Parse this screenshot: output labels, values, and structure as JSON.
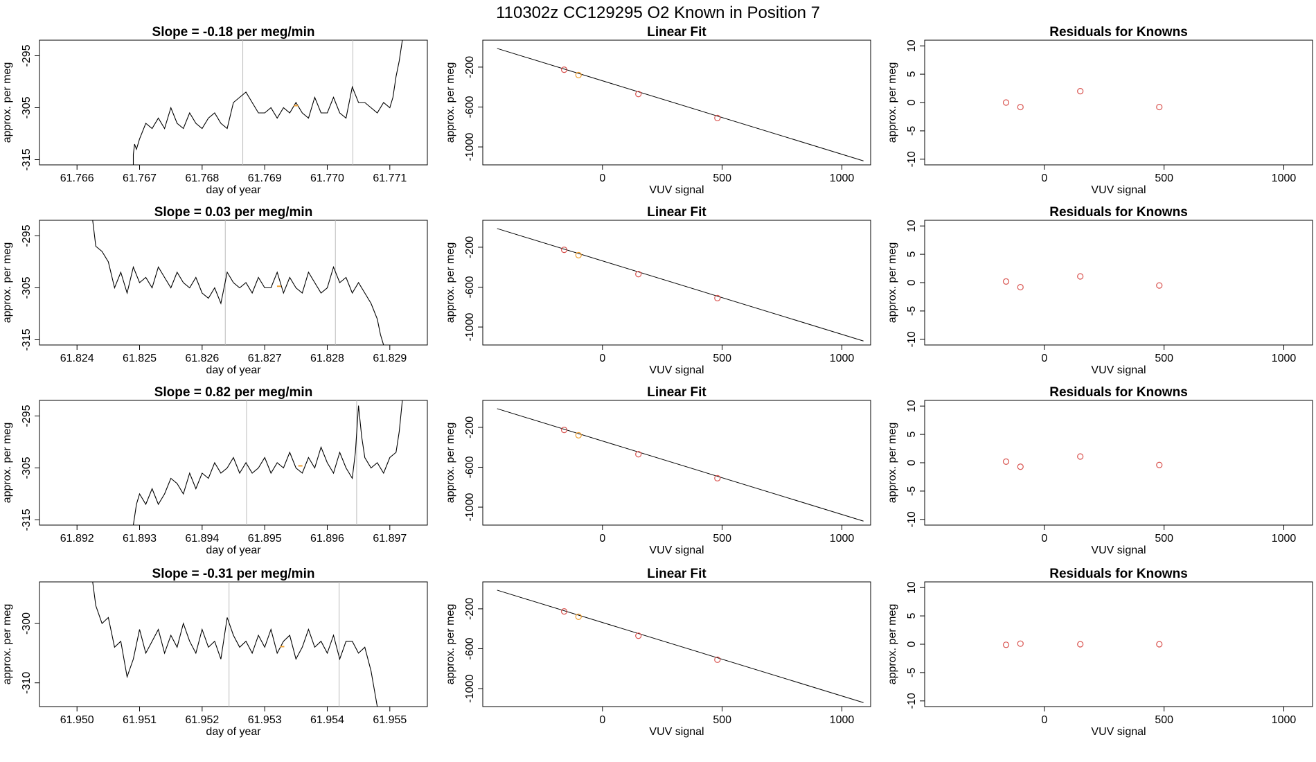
{
  "figure": {
    "title": "110302z      CC129295    O2 Known in Position  7"
  },
  "colors": {
    "line": "#000000",
    "point_red": "#d9534f",
    "point_orange": "#f0a030",
    "marker_line": "#bbbbbb",
    "box": "#000000"
  },
  "chart_data": [
    {
      "type": "line",
      "row": 0,
      "kind": "timeseries",
      "title": "Slope =  -0.18  per meg/min",
      "xlabel": "day of year",
      "ylabel": "approx. per meg",
      "xlim": [
        61.7654,
        61.7716
      ],
      "ylim": [
        -316,
        -292
      ],
      "xticks": [
        61.766,
        61.767,
        61.768,
        61.769,
        61.77,
        61.771
      ],
      "xtick_labels": [
        "61.766",
        "61.767",
        "61.768",
        "61.769",
        "61.770",
        "61.771"
      ],
      "yticks": [
        -315,
        -305,
        -295
      ],
      "ytick_labels": [
        "-315",
        "-305",
        "-295"
      ],
      "vlines": [
        61.76865,
        61.77041
      ],
      "marker": {
        "x": 61.7695,
        "y": -304.6
      },
      "series": [
        {
          "x": [
            61.7655,
            61.7668,
            61.7669,
            61.7669,
            61.76692,
            61.76695,
            61.767,
            61.7671,
            61.7672,
            61.7673,
            61.7674,
            61.7675,
            61.7676,
            61.7677,
            61.7678,
            61.7679,
            61.768,
            61.7681,
            61.7682,
            61.7683,
            61.7684,
            61.7685,
            61.7686,
            61.7687,
            61.7688,
            61.7689,
            61.769,
            61.7691,
            61.7692,
            61.7693,
            61.7694,
            61.7695,
            61.7696,
            61.7697,
            61.7698,
            61.7699,
            61.77,
            61.7701,
            61.7702,
            61.7703,
            61.7704,
            61.7705,
            61.7706,
            61.7707,
            61.7708,
            61.7709,
            61.771,
            61.77105,
            61.7711,
            61.77115,
            61.7712
          ],
          "y": [
            -316,
            -316,
            -316,
            -314,
            -312,
            -313,
            -311,
            -308,
            -309,
            -307,
            -309,
            -305,
            -308,
            -309,
            -306,
            -308,
            -309,
            -307,
            -306,
            -308,
            -309,
            -304,
            -303,
            -302,
            -304,
            -306,
            -306,
            -305,
            -307,
            -305,
            -306,
            -304,
            -306,
            -307,
            -303,
            -306,
            -306,
            -303,
            -306,
            -307,
            -301,
            -304,
            -304,
            -305,
            -306,
            -304,
            -305,
            -303,
            -299,
            -296,
            -292
          ]
        }
      ]
    },
    {
      "type": "line",
      "row": 0,
      "kind": "linearfit",
      "title": "Linear Fit",
      "xlabel": "VUV signal",
      "ylabel": "approx. per meg",
      "xlim": [
        -500,
        1120
      ],
      "ylim": [
        -1180,
        70
      ],
      "xticks": [
        0,
        500,
        1000
      ],
      "xtick_labels": [
        "0",
        "500",
        "1000"
      ],
      "yticks": [
        -200,
        -600,
        -1000
      ],
      "ytick_labels": [
        "-200",
        "-600",
        "-1000"
      ],
      "fit_line": {
        "x": [
          -440,
          1090
        ],
        "y": [
          -13,
          -1140
        ]
      },
      "points": [
        {
          "x": -160,
          "y": -226,
          "color": "red"
        },
        {
          "x": -100,
          "y": -280,
          "color": "orange"
        },
        {
          "x": 150,
          "y": -470,
          "color": "red"
        },
        {
          "x": 480,
          "y": -710,
          "color": "red"
        }
      ]
    },
    {
      "type": "scatter",
      "row": 0,
      "kind": "residuals",
      "title": "Residuals for Knowns",
      "xlabel": "VUV signal",
      "ylabel": "approx. per meg",
      "xlim": [
        -500,
        1120
      ],
      "ylim": [
        -11,
        11
      ],
      "xticks": [
        0,
        500,
        1000
      ],
      "xtick_labels": [
        "0",
        "500",
        "1000"
      ],
      "yticks": [
        -10,
        -5,
        0,
        5,
        10
      ],
      "ytick_labels": [
        "-10",
        "-5",
        "0",
        "5",
        "10"
      ],
      "points": [
        {
          "x": -160,
          "y": 0.0
        },
        {
          "x": -100,
          "y": -0.8
        },
        {
          "x": 150,
          "y": 2.0
        },
        {
          "x": 480,
          "y": -0.8
        }
      ]
    },
    {
      "type": "line",
      "row": 1,
      "kind": "timeseries",
      "title": "Slope =  0.03  per meg/min",
      "xlabel": "day of year",
      "ylabel": "approx. per meg",
      "xlim": [
        61.8234,
        61.8296
      ],
      "ylim": [
        -316,
        -292
      ],
      "xticks": [
        61.824,
        61.825,
        61.826,
        61.827,
        61.828,
        61.829
      ],
      "xtick_labels": [
        "61.824",
        "61.825",
        "61.826",
        "61.827",
        "61.828",
        "61.829"
      ],
      "yticks": [
        -315,
        -305,
        -295
      ],
      "ytick_labels": [
        "-315",
        "-305",
        "-295"
      ],
      "vlines": [
        61.82637,
        61.82813
      ],
      "marker": {
        "x": 61.82723,
        "y": -304.7
      },
      "series": [
        {
          "x": [
            61.82425,
            61.8243,
            61.8244,
            61.8245,
            61.8246,
            61.8247,
            61.8248,
            61.8249,
            61.825,
            61.8251,
            61.8252,
            61.8253,
            61.8254,
            61.8255,
            61.8256,
            61.8257,
            61.8258,
            61.8259,
            61.826,
            61.8261,
            61.8262,
            61.8263,
            61.8264,
            61.8265,
            61.8266,
            61.8267,
            61.8268,
            61.8269,
            61.827,
            61.8271,
            61.8272,
            61.8273,
            61.8274,
            61.8275,
            61.8276,
            61.8277,
            61.8278,
            61.8279,
            61.828,
            61.8281,
            61.8282,
            61.8283,
            61.8284,
            61.8285,
            61.8286,
            61.8287,
            61.8288,
            61.82885,
            61.8289
          ],
          "y": [
            -292,
            -297,
            -298,
            -300,
            -305,
            -302,
            -306,
            -301,
            -304,
            -303,
            -305,
            -301,
            -303,
            -305,
            -302,
            -304,
            -305,
            -303,
            -306,
            -307,
            -305,
            -308,
            -302,
            -304,
            -305,
            -304,
            -306,
            -303,
            -305,
            -305,
            -302,
            -306,
            -303,
            -305,
            -306,
            -302,
            -304,
            -306,
            -305,
            -301,
            -304,
            -303,
            -306,
            -304,
            -306,
            -308,
            -311,
            -314,
            -316
          ]
        }
      ]
    },
    {
      "type": "line",
      "row": 1,
      "kind": "linearfit",
      "title": "Linear Fit",
      "xlabel": "VUV signal",
      "ylabel": "approx. per meg",
      "xlim": [
        -500,
        1120
      ],
      "ylim": [
        -1180,
        70
      ],
      "xticks": [
        0,
        500,
        1000
      ],
      "xtick_labels": [
        "0",
        "500",
        "1000"
      ],
      "yticks": [
        -200,
        -600,
        -1000
      ],
      "ytick_labels": [
        "-200",
        "-600",
        "-1000"
      ],
      "fit_line": {
        "x": [
          -440,
          1090
        ],
        "y": [
          -13,
          -1140
        ]
      },
      "points": [
        {
          "x": -160,
          "y": -226,
          "color": "red"
        },
        {
          "x": -100,
          "y": -280,
          "color": "orange"
        },
        {
          "x": 150,
          "y": -470,
          "color": "red"
        },
        {
          "x": 480,
          "y": -710,
          "color": "red"
        }
      ]
    },
    {
      "type": "scatter",
      "row": 1,
      "kind": "residuals",
      "title": "Residuals for Knowns",
      "xlabel": "VUV signal",
      "ylabel": "approx. per meg",
      "xlim": [
        -500,
        1120
      ],
      "ylim": [
        -11,
        11
      ],
      "xticks": [
        0,
        500,
        1000
      ],
      "xtick_labels": [
        "0",
        "500",
        "1000"
      ],
      "yticks": [
        -10,
        -5,
        0,
        5,
        10
      ],
      "ytick_labels": [
        "-10",
        "-5",
        "0",
        "5",
        "10"
      ],
      "points": [
        {
          "x": -160,
          "y": 0.2
        },
        {
          "x": -100,
          "y": -0.8
        },
        {
          "x": 150,
          "y": 1.1
        },
        {
          "x": 480,
          "y": -0.5
        }
      ]
    },
    {
      "type": "line",
      "row": 2,
      "kind": "timeseries",
      "title": "Slope =  0.82  per meg/min",
      "xlabel": "day of year",
      "ylabel": "approx. per meg",
      "xlim": [
        61.8914,
        61.8976
      ],
      "ylim": [
        -316,
        -292
      ],
      "xticks": [
        61.892,
        61.893,
        61.894,
        61.895,
        61.896,
        61.897
      ],
      "xtick_labels": [
        "61.892",
        "61.893",
        "61.894",
        "61.895",
        "61.896",
        "61.897"
      ],
      "yticks": [
        -315,
        -305,
        -295
      ],
      "ytick_labels": [
        "-315",
        "-305",
        "-295"
      ],
      "vlines": [
        61.89471,
        61.89647
      ],
      "marker": {
        "x": 61.89557,
        "y": -304.6
      },
      "series": [
        {
          "x": [
            61.8915,
            61.8928,
            61.8929,
            61.89295,
            61.893,
            61.8931,
            61.8932,
            61.8933,
            61.8934,
            61.8935,
            61.8936,
            61.8937,
            61.8938,
            61.8939,
            61.894,
            61.8941,
            61.8942,
            61.8943,
            61.8944,
            61.8945,
            61.8946,
            61.8947,
            61.8948,
            61.8949,
            61.895,
            61.8951,
            61.8952,
            61.8953,
            61.8954,
            61.8955,
            61.8956,
            61.8957,
            61.8958,
            61.8959,
            61.896,
            61.8961,
            61.8962,
            61.8963,
            61.8964,
            61.89645,
            61.8965,
            61.89655,
            61.8966,
            61.8967,
            61.8968,
            61.8969,
            61.897,
            61.8971,
            61.89715,
            61.8972
          ],
          "y": [
            -316,
            -316,
            -316,
            -312,
            -310,
            -312,
            -309,
            -312,
            -310,
            -307,
            -308,
            -310,
            -306,
            -309,
            -306,
            -307,
            -304,
            -306,
            -305,
            -303,
            -306,
            -304,
            -306,
            -305,
            -303,
            -306,
            -304,
            -305,
            -302,
            -305,
            -306,
            -303,
            -305,
            -301,
            -304,
            -306,
            -302,
            -305,
            -307,
            -302,
            -293,
            -299,
            -303,
            -305,
            -304,
            -306,
            -303,
            -302,
            -298,
            -292
          ]
        }
      ]
    },
    {
      "type": "line",
      "row": 2,
      "kind": "linearfit",
      "title": "Linear Fit",
      "xlabel": "VUV signal",
      "ylabel": "approx. per meg",
      "xlim": [
        -500,
        1120
      ],
      "ylim": [
        -1180,
        70
      ],
      "xticks": [
        0,
        500,
        1000
      ],
      "xtick_labels": [
        "0",
        "500",
        "1000"
      ],
      "yticks": [
        -200,
        -600,
        -1000
      ],
      "ytick_labels": [
        "-200",
        "-600",
        "-1000"
      ],
      "fit_line": {
        "x": [
          -440,
          1090
        ],
        "y": [
          -13,
          -1140
        ]
      },
      "points": [
        {
          "x": -160,
          "y": -226,
          "color": "red"
        },
        {
          "x": -100,
          "y": -280,
          "color": "orange"
        },
        {
          "x": 150,
          "y": -470,
          "color": "red"
        },
        {
          "x": 480,
          "y": -710,
          "color": "red"
        }
      ]
    },
    {
      "type": "scatter",
      "row": 2,
      "kind": "residuals",
      "title": "Residuals for Knowns",
      "xlabel": "VUV signal",
      "ylabel": "approx. per meg",
      "xlim": [
        -500,
        1120
      ],
      "ylim": [
        -11,
        11
      ],
      "xticks": [
        0,
        500,
        1000
      ],
      "xtick_labels": [
        "0",
        "500",
        "1000"
      ],
      "yticks": [
        -10,
        -5,
        0,
        5,
        10
      ],
      "ytick_labels": [
        "-10",
        "-5",
        "0",
        "5",
        "10"
      ],
      "points": [
        {
          "x": -160,
          "y": 0.2
        },
        {
          "x": -100,
          "y": -0.7
        },
        {
          "x": 150,
          "y": 1.1
        },
        {
          "x": 480,
          "y": -0.4
        }
      ]
    },
    {
      "type": "line",
      "row": 3,
      "kind": "timeseries",
      "title": "Slope =  -0.31  per meg/min",
      "xlabel": "day of year",
      "ylabel": "approx. per meg",
      "xlim": [
        61.9494,
        61.9556
      ],
      "ylim": [
        -314,
        -293
      ],
      "xticks": [
        61.95,
        61.951,
        61.952,
        61.953,
        61.954,
        61.955
      ],
      "xtick_labels": [
        "61.950",
        "61.951",
        "61.952",
        "61.953",
        "61.954",
        "61.955"
      ],
      "yticks": [
        -310,
        -300
      ],
      "ytick_labels": [
        "-310",
        "-300"
      ],
      "vlines": [
        61.95243,
        61.95419
      ],
      "marker": {
        "x": 61.95328,
        "y": -303.9
      },
      "series": [
        {
          "x": [
            61.95025,
            61.9503,
            61.9504,
            61.9505,
            61.9506,
            61.9507,
            61.9508,
            61.9509,
            61.951,
            61.9511,
            61.9512,
            61.9513,
            61.9514,
            61.9515,
            61.9516,
            61.9517,
            61.9518,
            61.9519,
            61.952,
            61.9521,
            61.9522,
            61.9523,
            61.9524,
            61.9525,
            61.9526,
            61.9527,
            61.9528,
            61.9529,
            61.953,
            61.9531,
            61.9532,
            61.9533,
            61.9534,
            61.9535,
            61.9536,
            61.9537,
            61.9538,
            61.9539,
            61.954,
            61.9541,
            61.9542,
            61.9543,
            61.9544,
            61.9545,
            61.9546,
            61.9547,
            61.95475,
            61.9548
          ],
          "y": [
            -293,
            -297,
            -300,
            -299,
            -304,
            -303,
            -309,
            -306,
            -301,
            -305,
            -303,
            -301,
            -305,
            -302,
            -304,
            -300,
            -303,
            -305,
            -301,
            -304,
            -303,
            -306,
            -299,
            -302,
            -304,
            -303,
            -305,
            -302,
            -304,
            -301,
            -305,
            -303,
            -302,
            -306,
            -304,
            -301,
            -304,
            -303,
            -305,
            -302,
            -306,
            -303,
            -303,
            -305,
            -304,
            -308,
            -311,
            -314
          ]
        }
      ]
    },
    {
      "type": "line",
      "row": 3,
      "kind": "linearfit",
      "title": "Linear Fit",
      "xlabel": "VUV signal",
      "ylabel": "approx. per meg",
      "xlim": [
        -500,
        1120
      ],
      "ylim": [
        -1180,
        70
      ],
      "xticks": [
        0,
        500,
        1000
      ],
      "xtick_labels": [
        "0",
        "500",
        "1000"
      ],
      "yticks": [
        -200,
        -600,
        -1000
      ],
      "ytick_labels": [
        "-200",
        "-600",
        "-1000"
      ],
      "fit_line": {
        "x": [
          -440,
          1090
        ],
        "y": [
          -13,
          -1140
        ]
      },
      "points": [
        {
          "x": -160,
          "y": -226,
          "color": "red"
        },
        {
          "x": -100,
          "y": -280,
          "color": "orange"
        },
        {
          "x": 150,
          "y": -470,
          "color": "red"
        },
        {
          "x": 480,
          "y": -710,
          "color": "red"
        }
      ]
    },
    {
      "type": "scatter",
      "row": 3,
      "kind": "residuals",
      "title": "Residuals for Knowns",
      "xlabel": "VUV signal",
      "ylabel": "approx. per meg",
      "xlim": [
        -500,
        1120
      ],
      "ylim": [
        -11,
        11
      ],
      "xticks": [
        0,
        500,
        1000
      ],
      "xtick_labels": [
        "0",
        "500",
        "1000"
      ],
      "yticks": [
        -10,
        -5,
        0,
        5,
        10
      ],
      "ytick_labels": [
        "-10",
        "-5",
        "0",
        "5",
        "10"
      ],
      "points": [
        {
          "x": -160,
          "y": -0.1
        },
        {
          "x": -100,
          "y": 0.1
        },
        {
          "x": 150,
          "y": 0.0
        },
        {
          "x": 480,
          "y": 0.0
        }
      ]
    }
  ]
}
